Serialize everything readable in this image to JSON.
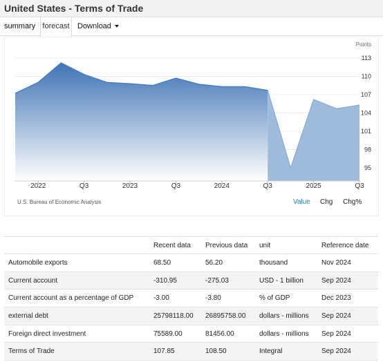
{
  "header": {
    "title": "United States - Terms of Trade"
  },
  "tabs": [
    {
      "label": "summary"
    },
    {
      "label": "forecast"
    },
    {
      "label": "Download"
    }
  ],
  "chart": {
    "unit_label": "Points",
    "source": "U.S. Bureau of Economic Analysis",
    "modes": [
      "Value",
      "Chg",
      "Chg%"
    ],
    "colors": {
      "historical": "#4a7fbf",
      "forecast": "#9fbbdc"
    }
  },
  "chart_data": {
    "type": "area",
    "ylim": [
      93,
      114
    ],
    "y_ticks": [
      95,
      98,
      101,
      104,
      107,
      110,
      113
    ],
    "x_tick_labels": [
      "2022",
      "Q3",
      "2023",
      "Q3",
      "2024",
      "Q3",
      "2025",
      "Q3"
    ],
    "x": [
      "2021-Q3",
      "2021-Q4",
      "2022-Q1",
      "2022-Q2",
      "2022-Q3",
      "2022-Q4",
      "2023-Q1",
      "2023-Q2",
      "2023-Q3",
      "2023-Q4",
      "2024-Q1",
      "2024-Q2",
      "2024-Q3",
      "2024-Q4",
      "2025-Q1",
      "2025-Q2",
      "2025-Q3"
    ],
    "historical_values": [
      107.2,
      109.0,
      112.2,
      110.3,
      109.0,
      108.8,
      108.5,
      109.7,
      108.7,
      108.3,
      108.3,
      107.7
    ],
    "forecast_values": [
      107.7,
      95.0,
      106.2,
      104.7,
      105.3
    ]
  },
  "table": {
    "headers": [
      "",
      "Recent data",
      "Previous data",
      "unit",
      "Reference date"
    ],
    "rows": [
      [
        "Automobile exports",
        "68.50",
        "56.20",
        "thousand",
        "Nov 2024"
      ],
      [
        "Current account",
        "-310.95",
        "-275.03",
        "USD - 1 billion",
        "Sep 2024"
      ],
      [
        "Current account as a percentage of GDP",
        "-3.00",
        "-3.80",
        "% of GDP",
        "Dec 2023"
      ],
      [
        "external debt",
        "25798118.00",
        "26895758.00",
        "dollars - millions",
        "Sep 2024"
      ],
      [
        "Foreign direct investment",
        "75589.00",
        "81456.00",
        "dollars - millions",
        "Sep 2024"
      ],
      [
        "Terms of Trade",
        "107.85",
        "108.50",
        "Integral",
        "Sep 2024"
      ]
    ]
  }
}
